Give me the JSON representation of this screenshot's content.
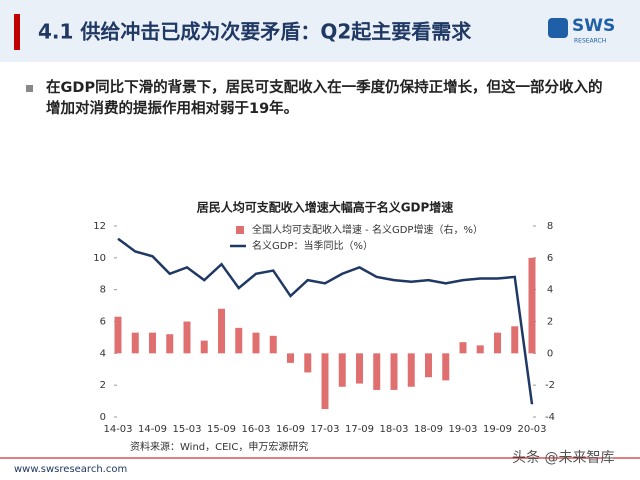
{
  "header": {
    "title": "4.1 供给冲击已成为次要矛盾：Q2起主要看需求",
    "logo": "SWS",
    "logo_sub": "RESEARCH"
  },
  "bullet": "在GDP同比下滑的背景下，居民可支配收入在一季度仍保持正增长，但这一部分收入的增加对消费的提振作用相对弱于19年。",
  "chart_data": {
    "type": "bar-line",
    "title": "居民人均可支配收入增速大幅高于名义GDP增速",
    "categories": [
      "14-03",
      null,
      "14-09",
      null,
      "15-03",
      null,
      "15-09",
      null,
      "16-03",
      null,
      "16-09",
      null,
      "17-03",
      null,
      "17-09",
      null,
      "18-03",
      null,
      "18-09",
      null,
      "19-03",
      null,
      "19-09",
      null,
      "20-03"
    ],
    "series": [
      {
        "name": "全国人均可支配收入增速 - 名义GDP增速（右，%）",
        "color": "#e07070",
        "axis": "y2",
        "kind": "bar",
        "values": [
          2.3,
          1.3,
          1.3,
          1.2,
          2.0,
          0.8,
          2.8,
          1.6,
          1.3,
          1.1,
          -0.6,
          -1.2,
          -3.5,
          -2.1,
          -1.9,
          -2.3,
          -2.3,
          -2.1,
          -1.5,
          -1.7,
          0.7,
          0.5,
          1.3,
          1.7,
          6.0
        ]
      },
      {
        "name": "名义GDP：当季同比（%）",
        "color": "#1f3864",
        "axis": "y",
        "kind": "line",
        "values": [
          11.2,
          10.4,
          10.1,
          9.0,
          9.4,
          8.6,
          9.6,
          8.1,
          9.0,
          9.2,
          7.6,
          8.6,
          8.4,
          9.0,
          9.4,
          8.8,
          8.6,
          8.5,
          8.6,
          8.4,
          8.6,
          8.7,
          8.7,
          8.8,
          0.8
        ]
      }
    ],
    "ylim": [
      0,
      12
    ],
    "yticks": [
      0,
      2,
      4,
      6,
      8,
      10,
      12
    ],
    "y2lim": [
      -4,
      8
    ],
    "y2ticks": [
      -4,
      -2,
      0,
      2,
      4,
      6,
      8
    ],
    "source": "资料来源：Wind，CEIC，申万宏源研究"
  },
  "footer": {
    "url": "www.swsresearch.com",
    "watermark": "头条 @未来智库"
  }
}
